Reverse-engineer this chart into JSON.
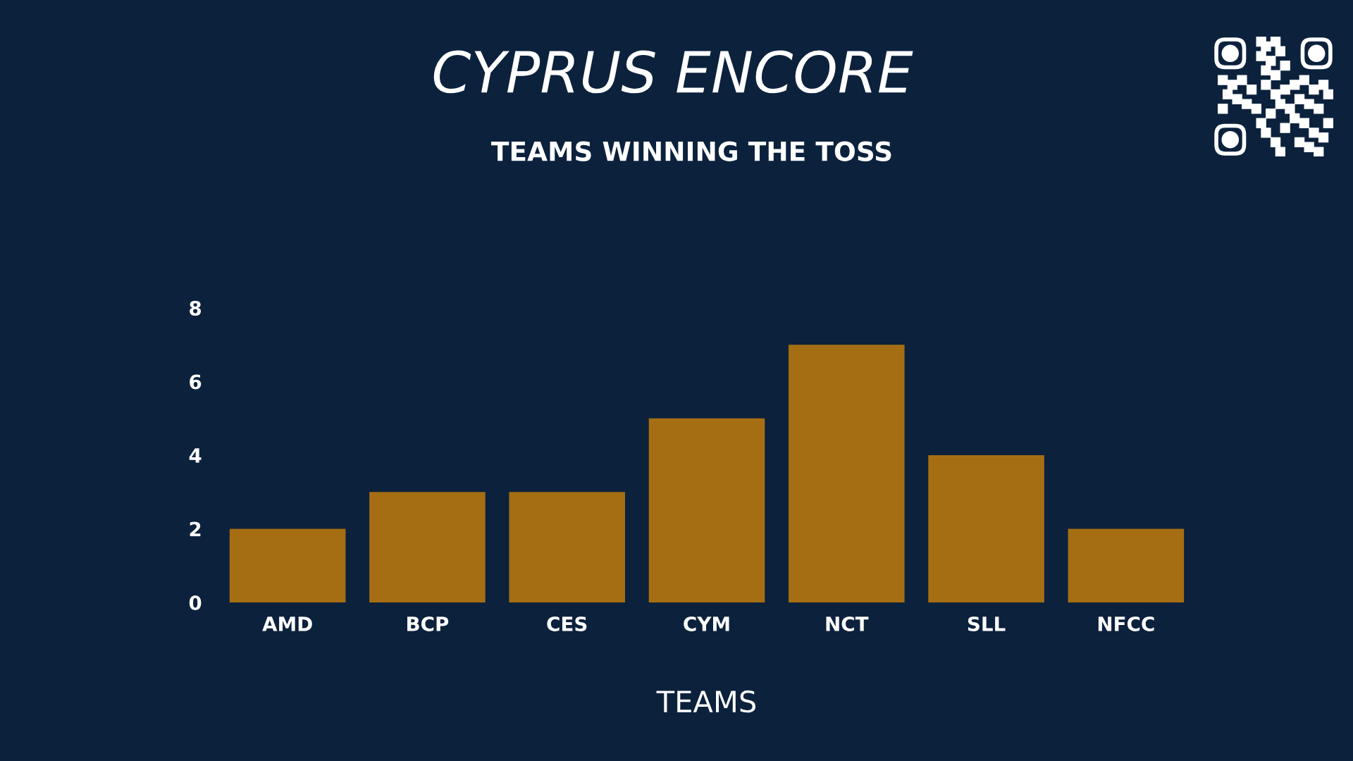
{
  "chart_data": {
    "type": "bar",
    "title": "CYPRUS ENCORE",
    "subtitle": "TEAMS WINNING THE TOSS",
    "xlabel": "TEAMS",
    "categories": [
      "AMD",
      "BCP",
      "CES",
      "CYM",
      "NCT",
      "SLL",
      "NFCC"
    ],
    "values": [
      2,
      3,
      3,
      5,
      7,
      4,
      2
    ],
    "color": "#a66e13",
    "ylim": [
      0,
      8
    ],
    "yticks": [
      0,
      2,
      4,
      6,
      8
    ]
  }
}
